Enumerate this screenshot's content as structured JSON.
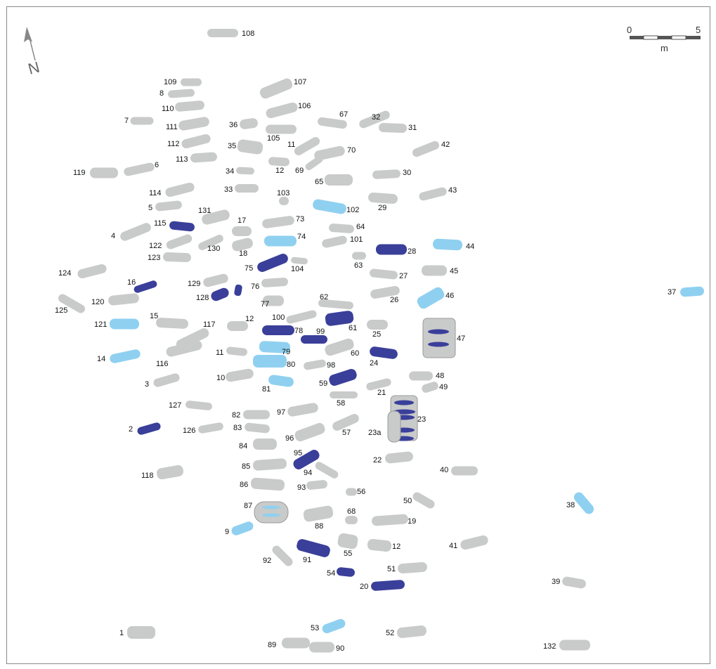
{
  "colors": {
    "stone_gray": "#c9caca",
    "stone_dark_blue": "#3a3f9a",
    "stone_light_blue": "#8fd0f0",
    "pit_fill": "#c9caca",
    "label": "#111111"
  },
  "north": {
    "letter": "N"
  },
  "scale": {
    "start": "0",
    "end": "5",
    "unit": "m"
  },
  "stones": [
    {
      "id": "108",
      "label": "108",
      "kind": "gray"
    },
    {
      "id": "109",
      "label": "109",
      "kind": "gray"
    },
    {
      "id": "8",
      "label": "8",
      "kind": "gray"
    },
    {
      "id": "107",
      "label": "107",
      "kind": "gray"
    },
    {
      "id": "110",
      "label": "110",
      "kind": "gray"
    },
    {
      "id": "106",
      "label": "106",
      "kind": "gray"
    },
    {
      "id": "7",
      "label": "7",
      "kind": "gray"
    },
    {
      "id": "111",
      "label": "111",
      "kind": "gray"
    },
    {
      "id": "36",
      "label": "36",
      "kind": "gray"
    },
    {
      "id": "67",
      "label": "67",
      "kind": "gray"
    },
    {
      "id": "32",
      "label": "32",
      "kind": "gray"
    },
    {
      "id": "31",
      "label": "31",
      "kind": "gray"
    },
    {
      "id": "105",
      "label": "105",
      "kind": "gray"
    },
    {
      "id": "112",
      "label": "112",
      "kind": "gray"
    },
    {
      "id": "35",
      "label": "35",
      "kind": "gray"
    },
    {
      "id": "11a",
      "label": "11",
      "kind": "gray"
    },
    {
      "id": "70",
      "label": "70",
      "kind": "gray"
    },
    {
      "id": "42",
      "label": "42",
      "kind": "gray"
    },
    {
      "id": "113",
      "label": "113",
      "kind": "gray"
    },
    {
      "id": "12a",
      "label": "12",
      "kind": "gray"
    },
    {
      "id": "69",
      "label": "69",
      "kind": "gray"
    },
    {
      "id": "6",
      "label": "6",
      "kind": "gray"
    },
    {
      "id": "119",
      "label": "119",
      "kind": "gray"
    },
    {
      "id": "34",
      "label": "34",
      "kind": "gray"
    },
    {
      "id": "30",
      "label": "30",
      "kind": "gray"
    },
    {
      "id": "65",
      "label": "65",
      "kind": "gray"
    },
    {
      "id": "33",
      "label": "33",
      "kind": "gray"
    },
    {
      "id": "114",
      "label": "114",
      "kind": "gray"
    },
    {
      "id": "103",
      "label": "103",
      "kind": "gray"
    },
    {
      "id": "43",
      "label": "43",
      "kind": "gray"
    },
    {
      "id": "29",
      "label": "29",
      "kind": "gray"
    },
    {
      "id": "5",
      "label": "5",
      "kind": "gray"
    },
    {
      "id": "102",
      "label": "102",
      "kind": "light"
    },
    {
      "id": "131",
      "label": "131",
      "kind": "gray"
    },
    {
      "id": "115",
      "label": "115",
      "kind": "dark"
    },
    {
      "id": "17",
      "label": "17",
      "kind": "gray"
    },
    {
      "id": "73",
      "label": "73",
      "kind": "gray"
    },
    {
      "id": "64",
      "label": "64",
      "kind": "gray"
    },
    {
      "id": "4",
      "label": "4",
      "kind": "gray"
    },
    {
      "id": "74",
      "label": "74",
      "kind": "light"
    },
    {
      "id": "101",
      "label": "101",
      "kind": "gray"
    },
    {
      "id": "28",
      "label": "28",
      "kind": "dark"
    },
    {
      "id": "44",
      "label": "44",
      "kind": "light"
    },
    {
      "id": "122",
      "label": "122",
      "kind": "gray"
    },
    {
      "id": "130",
      "label": "130",
      "kind": "gray"
    },
    {
      "id": "18",
      "label": "18",
      "kind": "gray"
    },
    {
      "id": "123",
      "label": "123",
      "kind": "gray"
    },
    {
      "id": "75",
      "label": "75",
      "kind": "dark"
    },
    {
      "id": "104",
      "label": "104",
      "kind": "gray"
    },
    {
      "id": "63",
      "label": "63",
      "kind": "gray"
    },
    {
      "id": "124",
      "label": "124",
      "kind": "gray"
    },
    {
      "id": "27",
      "label": "27",
      "kind": "gray"
    },
    {
      "id": "45",
      "label": "45",
      "kind": "gray"
    },
    {
      "id": "129",
      "label": "129",
      "kind": "gray"
    },
    {
      "id": "16",
      "label": "16",
      "kind": "dark"
    },
    {
      "id": "76",
      "label": "76",
      "kind": "gray"
    },
    {
      "id": "37",
      "label": "37",
      "kind": "light"
    },
    {
      "id": "128",
      "label": "128",
      "kind": "dark"
    },
    {
      "id": "26",
      "label": "26",
      "kind": "gray"
    },
    {
      "id": "46",
      "label": "46",
      "kind": "light"
    },
    {
      "id": "120",
      "label": "120",
      "kind": "gray"
    },
    {
      "id": "77",
      "label": "77",
      "kind": "gray"
    },
    {
      "id": "62",
      "label": "62",
      "kind": "gray"
    },
    {
      "id": "125",
      "label": "125",
      "kind": "gray"
    },
    {
      "id": "100",
      "label": "100",
      "kind": "gray"
    },
    {
      "id": "15",
      "label": "15",
      "kind": "gray"
    },
    {
      "id": "121",
      "label": "121",
      "kind": "light"
    },
    {
      "id": "117",
      "label": "117",
      "kind": "gray"
    },
    {
      "id": "12b",
      "label": "12",
      "kind": "gray"
    },
    {
      "id": "78",
      "label": "78",
      "kind": "dark"
    },
    {
      "id": "99",
      "label": "99",
      "kind": "dark"
    },
    {
      "id": "61",
      "label": "61",
      "kind": "dark"
    },
    {
      "id": "25",
      "label": "25",
      "kind": "gray"
    },
    {
      "id": "116",
      "label": "116",
      "kind": "gray"
    },
    {
      "id": "11b",
      "label": "11",
      "kind": "gray"
    },
    {
      "id": "79",
      "label": "79",
      "kind": "light"
    },
    {
      "id": "60",
      "label": "60",
      "kind": "gray"
    },
    {
      "id": "24",
      "label": "24",
      "kind": "dark"
    },
    {
      "id": "14",
      "label": "14",
      "kind": "light"
    },
    {
      "id": "80",
      "label": "80",
      "kind": "light"
    },
    {
      "id": "98",
      "label": "98",
      "kind": "gray"
    },
    {
      "id": "10",
      "label": "10",
      "kind": "gray"
    },
    {
      "id": "59",
      "label": "59",
      "kind": "dark"
    },
    {
      "id": "48",
      "label": "48",
      "kind": "gray"
    },
    {
      "id": "3",
      "label": "3",
      "kind": "gray"
    },
    {
      "id": "81",
      "label": "81",
      "kind": "light"
    },
    {
      "id": "21",
      "label": "21",
      "kind": "gray"
    },
    {
      "id": "49",
      "label": "49",
      "kind": "gray"
    },
    {
      "id": "58",
      "label": "58",
      "kind": "gray"
    },
    {
      "id": "127",
      "label": "127",
      "kind": "gray"
    },
    {
      "id": "97",
      "label": "97",
      "kind": "gray"
    },
    {
      "id": "82",
      "label": "82",
      "kind": "gray"
    },
    {
      "id": "2",
      "label": "2",
      "kind": "dark"
    },
    {
      "id": "126",
      "label": "126",
      "kind": "gray"
    },
    {
      "id": "83",
      "label": "83",
      "kind": "gray"
    },
    {
      "id": "57",
      "label": "57",
      "kind": "gray"
    },
    {
      "id": "96",
      "label": "96",
      "kind": "gray"
    },
    {
      "id": "84",
      "label": "84",
      "kind": "gray"
    },
    {
      "id": "95",
      "label": "95",
      "kind": "dark"
    },
    {
      "id": "22",
      "label": "22",
      "kind": "gray"
    },
    {
      "id": "118",
      "label": "118",
      "kind": "gray"
    },
    {
      "id": "85",
      "label": "85",
      "kind": "gray"
    },
    {
      "id": "94",
      "label": "94",
      "kind": "gray"
    },
    {
      "id": "40",
      "label": "40",
      "kind": "gray"
    },
    {
      "id": "86",
      "label": "86",
      "kind": "gray"
    },
    {
      "id": "93",
      "label": "93",
      "kind": "gray"
    },
    {
      "id": "56",
      "label": "56",
      "kind": "gray"
    },
    {
      "id": "50",
      "label": "50",
      "kind": "gray"
    },
    {
      "id": "38",
      "label": "38",
      "kind": "light"
    },
    {
      "id": "88",
      "label": "88",
      "kind": "gray"
    },
    {
      "id": "68",
      "label": "68",
      "kind": "gray"
    },
    {
      "id": "19",
      "label": "19",
      "kind": "gray"
    },
    {
      "id": "9",
      "label": "9",
      "kind": "light"
    },
    {
      "id": "55",
      "label": "55",
      "kind": "gray"
    },
    {
      "id": "12c",
      "label": "12",
      "kind": "gray"
    },
    {
      "id": "41",
      "label": "41",
      "kind": "gray"
    },
    {
      "id": "91",
      "label": "91",
      "kind": "dark"
    },
    {
      "id": "92",
      "label": "92",
      "kind": "gray"
    },
    {
      "id": "51",
      "label": "51",
      "kind": "gray"
    },
    {
      "id": "54",
      "label": "54",
      "kind": "dark"
    },
    {
      "id": "20",
      "label": "20",
      "kind": "dark"
    },
    {
      "id": "39",
      "label": "39",
      "kind": "gray"
    },
    {
      "id": "53",
      "label": "53",
      "kind": "light"
    },
    {
      "id": "1",
      "label": "1",
      "kind": "gray"
    },
    {
      "id": "52",
      "label": "52",
      "kind": "gray"
    },
    {
      "id": "89",
      "label": "89",
      "kind": "gray"
    },
    {
      "id": "90",
      "label": "90",
      "kind": "gray"
    },
    {
      "id": "132",
      "label": "132",
      "kind": "gray"
    }
  ],
  "features": [
    {
      "id": "47",
      "label": "47",
      "kind": "pit"
    },
    {
      "id": "23",
      "label": "23",
      "kind": "pit"
    },
    {
      "id": "23a",
      "label": "23a",
      "kind": "pit"
    },
    {
      "id": "87",
      "label": "87",
      "kind": "pit"
    }
  ]
}
